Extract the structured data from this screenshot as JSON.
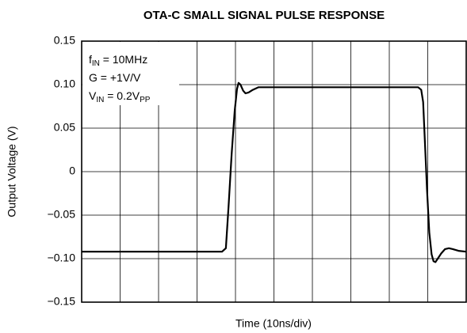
{
  "chart_data": {
    "type": "line",
    "title": "OTA-C SMALL SIGNAL PULSE RESPONSE",
    "xlabel": "Time (10ns/div)",
    "ylabel": "Output Voltage (V)",
    "annotations": [
      [
        "f",
        "IN",
        " = 10MHz"
      ],
      [
        "G = +1V/V"
      ],
      [
        "V",
        "IN",
        " = 0.2V",
        "PP"
      ]
    ],
    "x": [
      0,
      10,
      20,
      30,
      36.5,
      37.5,
      38.2,
      39,
      39.8,
      40.4,
      40.8,
      41.3,
      42,
      42.6,
      43.4,
      44.5,
      46,
      50,
      60,
      70,
      80,
      87.5,
      88.3,
      88.8,
      89.3,
      89.8,
      90.4,
      91,
      91.5,
      92,
      92.6,
      93.5,
      94.5,
      95.5,
      96.5,
      98,
      100
    ],
    "series": [
      {
        "name": "Output",
        "color": "#000000",
        "values": [
          -0.092,
          -0.092,
          -0.092,
          -0.092,
          -0.092,
          -0.088,
          -0.04,
          0.02,
          0.07,
          0.095,
          0.102,
          0.1,
          0.093,
          0.09,
          0.091,
          0.094,
          0.097,
          0.097,
          0.097,
          0.097,
          0.097,
          0.097,
          0.094,
          0.08,
          0.03,
          -0.02,
          -0.07,
          -0.095,
          -0.103,
          -0.104,
          -0.1,
          -0.094,
          -0.089,
          -0.088,
          -0.089,
          -0.091,
          -0.092
        ]
      }
    ],
    "xlim": [
      0,
      100
    ],
    "xticks": [
      0,
      10,
      20,
      30,
      40,
      50,
      60,
      70,
      80,
      90,
      100
    ],
    "ylim": [
      -0.15,
      0.15
    ],
    "yticks": [
      {
        "value": -0.15,
        "label": "−0.15"
      },
      {
        "value": -0.1,
        "label": "−0.10"
      },
      {
        "value": -0.05,
        "label": "−0.05"
      },
      0,
      0.05,
      {
        "value": 0.1,
        "label": "0.10"
      },
      0.15
    ],
    "grid": true
  }
}
